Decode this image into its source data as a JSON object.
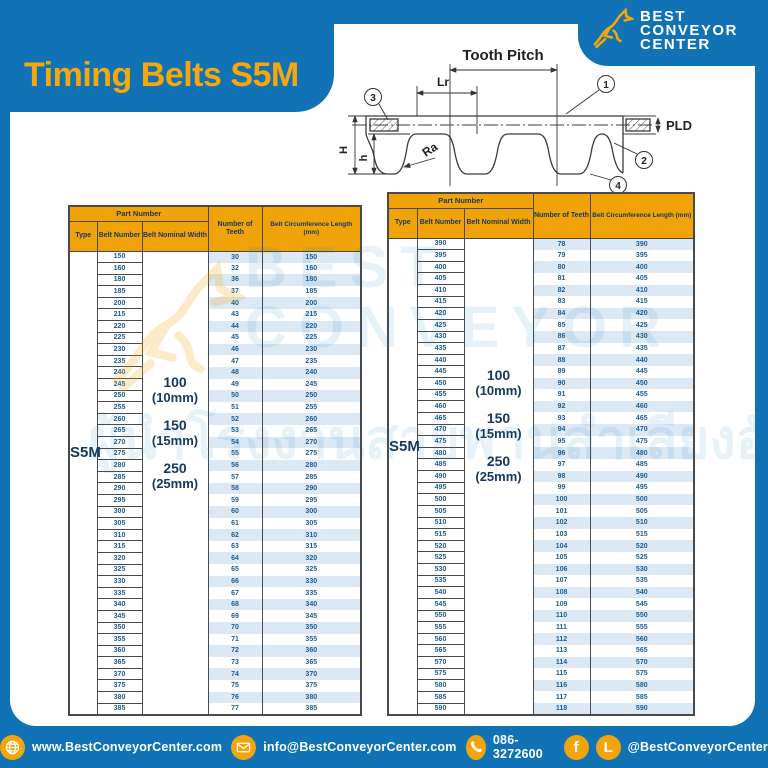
{
  "page": {
    "title": "Timing Belts S5M"
  },
  "logo": {
    "line1": "BEST",
    "line2": "CONVEYOR",
    "line3": "CENTER",
    "icon": "kangaroo-icon"
  },
  "watermark": {
    "line1": "BEST",
    "line2": "CONVEYOR",
    "thai": "ผู้นำโรงงานสายพานลำเลียงอัตโนมัติ"
  },
  "diagram": {
    "tooth_pitch": "Tooth Pitch",
    "lr": "Lr",
    "big_h": "H",
    "small_h": "h",
    "ra": "Ra",
    "pld": "PLD",
    "callouts": [
      "1",
      "2",
      "3",
      "4"
    ]
  },
  "table_headers": {
    "part_number": "Part Number",
    "type": "Type",
    "belt_number": "Belt Number",
    "belt_nominal_width": "Belt Nominal Width",
    "number_of_teeth": "Number of Teeth",
    "belt_circumference": "Belt Circumference Length (mm)"
  },
  "tables": [
    {
      "type": "S5M",
      "width_options": [
        {
          "value": "100",
          "unit": "(10mm)"
        },
        {
          "value": "150",
          "unit": "(15mm)"
        },
        {
          "value": "250",
          "unit": "(25mm)"
        }
      ],
      "belt_numbers": [
        150,
        160,
        180,
        185,
        200,
        215,
        220,
        225,
        230,
        235,
        240,
        245,
        250,
        255,
        260,
        265,
        270,
        275,
        280,
        285,
        290,
        295,
        300,
        305,
        310,
        315,
        320,
        325,
        330,
        335,
        340,
        345,
        350,
        355,
        360,
        365,
        370,
        375,
        380,
        385
      ],
      "teeth": [
        30,
        32,
        36,
        37,
        40,
        43,
        44,
        45,
        46,
        47,
        48,
        49,
        50,
        51,
        52,
        53,
        54,
        55,
        56,
        57,
        58,
        59,
        60,
        61,
        62,
        63,
        64,
        65,
        66,
        67,
        68,
        69,
        70,
        71,
        72,
        73,
        74,
        75,
        76,
        77
      ],
      "lengths": [
        150,
        160,
        180,
        185,
        200,
        215,
        220,
        225,
        230,
        235,
        240,
        245,
        250,
        255,
        260,
        265,
        270,
        275,
        280,
        285,
        290,
        295,
        300,
        305,
        310,
        315,
        320,
        325,
        330,
        335,
        340,
        345,
        350,
        355,
        360,
        365,
        370,
        375,
        380,
        385
      ]
    },
    {
      "type": "S5M",
      "width_options": [
        {
          "value": "100",
          "unit": "(10mm)"
        },
        {
          "value": "150",
          "unit": "(15mm)"
        },
        {
          "value": "250",
          "unit": "(25mm)"
        }
      ],
      "belt_numbers": [
        390,
        395,
        400,
        405,
        410,
        415,
        420,
        425,
        430,
        435,
        440,
        445,
        450,
        455,
        460,
        465,
        470,
        475,
        480,
        485,
        490,
        495,
        500,
        505,
        510,
        515,
        520,
        525,
        530,
        535,
        540,
        545,
        550,
        555,
        560,
        565,
        570,
        575,
        580,
        585,
        590
      ],
      "teeth": [
        78,
        79,
        80,
        81,
        82,
        83,
        84,
        85,
        86,
        87,
        88,
        89,
        90,
        91,
        92,
        93,
        94,
        95,
        96,
        97,
        98,
        99,
        100,
        101,
        102,
        103,
        104,
        105,
        106,
        107,
        108,
        109,
        110,
        111,
        112,
        113,
        114,
        115,
        116,
        117,
        118
      ],
      "lengths": [
        390,
        395,
        400,
        405,
        410,
        415,
        420,
        425,
        430,
        435,
        440,
        445,
        450,
        455,
        460,
        465,
        470,
        475,
        480,
        485,
        490,
        495,
        500,
        505,
        510,
        515,
        520,
        525,
        530,
        535,
        540,
        545,
        550,
        555,
        560,
        565,
        570,
        575,
        580,
        585,
        590
      ]
    }
  ],
  "footer": {
    "website": "www.BestConveyorCenter.com",
    "email": "info@BestConveyorCenter.com",
    "phone": "086-3272600",
    "social": "@BestConveyorCenter",
    "facebook_glyph": "f",
    "line_glyph": "L"
  },
  "colors": {
    "blue": "#1173b6",
    "accent_yellow": "#f6a70b",
    "header_orange": "#f0a309",
    "navy_text": "#16375f",
    "cell_text": "#1c5d92",
    "row_stripe": "#dce9f5"
  }
}
